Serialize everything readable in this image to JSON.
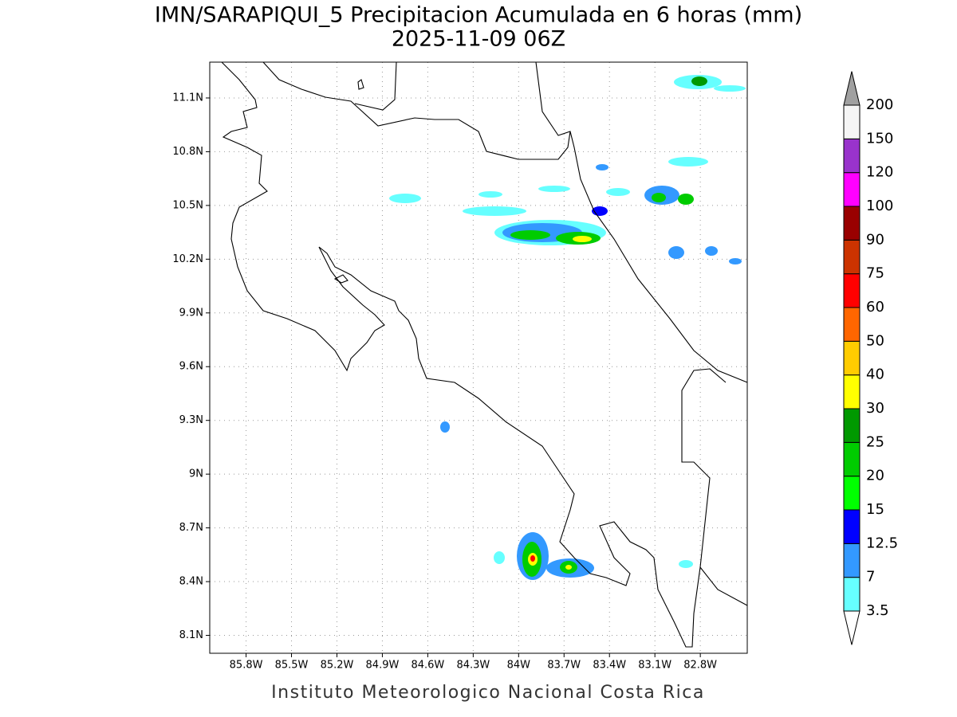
{
  "title": "IMN/SARAPIQUI_5 Precipitacion Acumulada en 6 horas (mm)",
  "subtitle": "2025-11-09 06Z",
  "footer": "Instituto Meteorologico Nacional Costa Rica",
  "map": {
    "lon_range": [
      -86.04,
      -82.49
    ],
    "lat_range": [
      8.0,
      11.3
    ],
    "lat_ticks": [
      {
        "value": 11.1,
        "label": "11.1N"
      },
      {
        "value": 10.8,
        "label": "10.8N"
      },
      {
        "value": 10.5,
        "label": "10.5N"
      },
      {
        "value": 10.2,
        "label": "10.2N"
      },
      {
        "value": 9.9,
        "label": "9.9N"
      },
      {
        "value": 9.6,
        "label": "9.6N"
      },
      {
        "value": 9.3,
        "label": "9.3N"
      },
      {
        "value": 9,
        "label": "9N"
      },
      {
        "value": 8.7,
        "label": "8.7N"
      },
      {
        "value": 8.4,
        "label": "8.4N"
      },
      {
        "value": 8.1,
        "label": "8.1N"
      }
    ],
    "lon_ticks": [
      {
        "value": -85.8,
        "label": "85.8W"
      },
      {
        "value": -85.5,
        "label": "85.5W"
      },
      {
        "value": -85.2,
        "label": "85.2W"
      },
      {
        "value": -84.9,
        "label": "84.9W"
      },
      {
        "value": -84.6,
        "label": "84.6W"
      },
      {
        "value": -84.3,
        "label": "84.3W"
      },
      {
        "value": -84,
        "label": "84W"
      },
      {
        "value": -83.7,
        "label": "83.7W"
      },
      {
        "value": -83.4,
        "label": "83.4W"
      },
      {
        "value": -83.1,
        "label": "83.1W"
      },
      {
        "value": -82.8,
        "label": "82.8W"
      }
    ],
    "grid": true
  },
  "colorbar": {
    "levels": [
      3.5,
      7,
      12.5,
      15,
      20,
      25,
      30,
      40,
      50,
      60,
      75,
      90,
      100,
      120,
      150,
      200
    ],
    "colors": [
      "#ffffff",
      "#66ffff",
      "#3399ff",
      "#0000ff",
      "#00ff00",
      "#00cc00",
      "#009900",
      "#ffff00",
      "#ffcc00",
      "#ff6600",
      "#ff0000",
      "#cc3300",
      "#990000",
      "#ff00ff",
      "#9933cc",
      "#f5f5f5",
      "#a0a0a0"
    ]
  }
}
